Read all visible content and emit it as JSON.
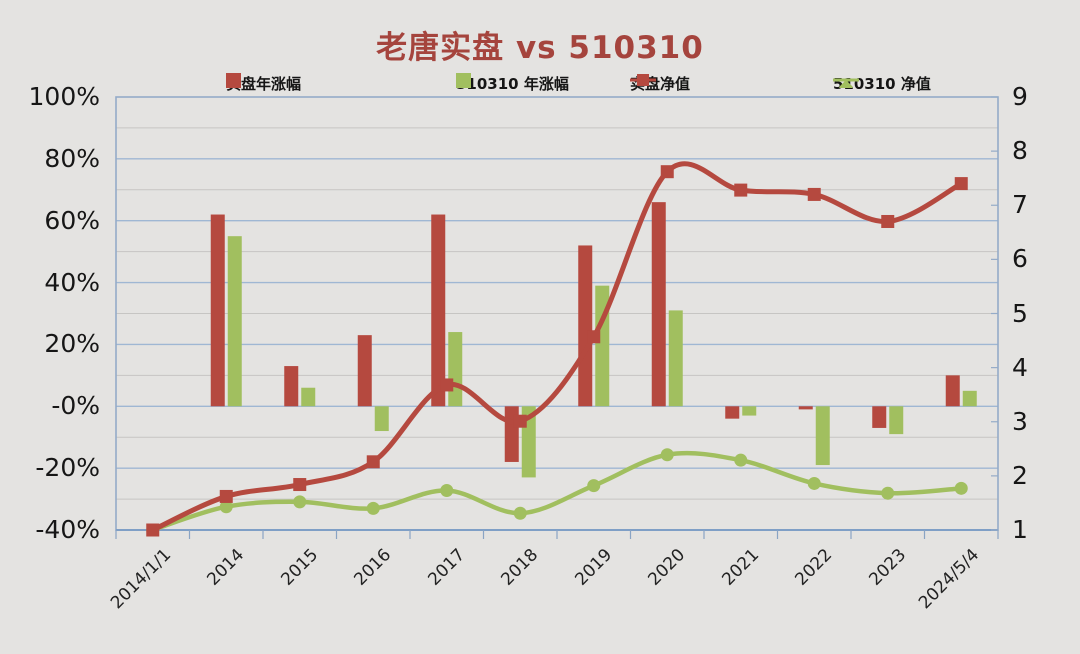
{
  "title": "老唐实盘 vs 510310",
  "legend": {
    "position": "top",
    "items": [
      {
        "label": "实盘年涨幅",
        "icon": "red-square-swatch",
        "color": "#b5493f"
      },
      {
        "label": "510310 年涨幅",
        "icon": "green-square-swatch",
        "color": "#a1bf5f"
      },
      {
        "label": "实盘净值",
        "icon": "red-line-square-marker",
        "color": "#b5493f"
      },
      {
        "label": "510310 净值",
        "icon": "green-line-diamond-marker",
        "color": "#a1bf5f"
      }
    ]
  },
  "colors": {
    "background": "#e4e3e1",
    "red_series": "#b5493f",
    "green_series": "#a1bf5f",
    "title_text": "#a5443d",
    "grid_major": "#9fb7d3",
    "grid_minor": "#c6c5c3",
    "plot_border": "#94abc8",
    "axis_text": "#161616"
  },
  "chart_data": {
    "type": "combo: grouped bar (left percent axis) + smooth line with markers (right net-value axis)",
    "title": "老唐实盘 vs 510310",
    "categories": [
      "2014/1/1",
      "2014",
      "2015",
      "2016",
      "2017",
      "2018",
      "2019",
      "2020",
      "2021",
      "2022",
      "2023",
      "2024/5/4"
    ],
    "series": [
      {
        "name": "实盘年涨幅",
        "type": "bar",
        "axis": "left",
        "unit": "%",
        "color": "#b5493f",
        "values": [
          null,
          62,
          13,
          23,
          62,
          -18,
          52,
          66,
          -4,
          -1,
          -7,
          10
        ]
      },
      {
        "name": "510310 年涨幅",
        "type": "bar",
        "axis": "left",
        "unit": "%",
        "color": "#a1bf5f",
        "values": [
          null,
          55,
          6,
          -8,
          24,
          -23,
          39,
          31,
          -3,
          -19,
          -9,
          5
        ]
      },
      {
        "name": "实盘净值",
        "type": "line",
        "axis": "right",
        "marker": "square",
        "smooth": true,
        "color": "#b5493f",
        "values": [
          1.0,
          1.62,
          1.84,
          2.26,
          3.68,
          3.01,
          4.57,
          7.62,
          7.28,
          7.2,
          6.7,
          7.4
        ]
      },
      {
        "name": "510310 净值",
        "type": "line",
        "axis": "right",
        "marker": "circle",
        "smooth": true,
        "color": "#a1bf5f",
        "values": [
          1.0,
          1.43,
          1.52,
          1.4,
          1.73,
          1.31,
          1.82,
          2.39,
          2.29,
          1.86,
          1.68,
          1.77
        ]
      }
    ],
    "left_axis": {
      "min": -40,
      "max": 100,
      "unit": "%",
      "ticks": [
        "100%",
        "80%",
        "60%",
        "40%",
        "20%",
        "-0%",
        "-20%",
        "-40%"
      ]
    },
    "right_axis": {
      "min": 1,
      "max": 9,
      "ticks": [
        "9",
        "8",
        "7",
        "6",
        "5",
        "4",
        "3",
        "2",
        "1"
      ]
    },
    "grid": "horizontal gridlines every 10% (minor gray), emphasized blue every 20%",
    "legend_position": "top"
  }
}
